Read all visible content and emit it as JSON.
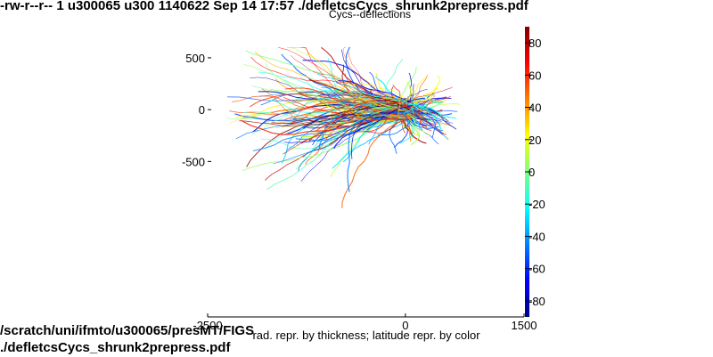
{
  "header": {
    "file_listing": "-rw-r--r-- 1 u300065 u300 1140622 Sep 14 17:57 ./defletcsCycs_shrunk2prepress.pdf"
  },
  "footer": {
    "path_line1": "/scratch/uni/ifmto/u300065/presMT/FIGS",
    "path_line2": "./defletcsCycs_shrunk2prepress.pdf"
  },
  "chart_data": {
    "type": "line",
    "title": "Cycs--deflections",
    "xlabel": "rad. repr. by thickness; latitude repr. by color",
    "ylabel": "",
    "xlim": [
      -2500,
      1500
    ],
    "ylim": [
      -2000,
      800
    ],
    "x_ticks": [
      "-2500",
      "0",
      "1500"
    ],
    "y_ticks": [
      "500",
      "0",
      "-500"
    ],
    "y_tick_values": [
      500,
      0,
      -500
    ],
    "colorbar": {
      "range": [
        -90,
        90
      ],
      "ticks": [
        "80",
        "60",
        "40",
        "20",
        "0",
        "-20",
        "-40",
        "-60",
        "-80"
      ],
      "tick_values": [
        80,
        60,
        40,
        20,
        0,
        -20,
        -40,
        -60,
        -80
      ],
      "colormap": "jet"
    },
    "track_bundle": {
      "origin": [
        0,
        0
      ],
      "count": 320,
      "x_extent": [
        -2400,
        800
      ],
      "y_extent": [
        -950,
        600
      ]
    },
    "grid": false
  }
}
